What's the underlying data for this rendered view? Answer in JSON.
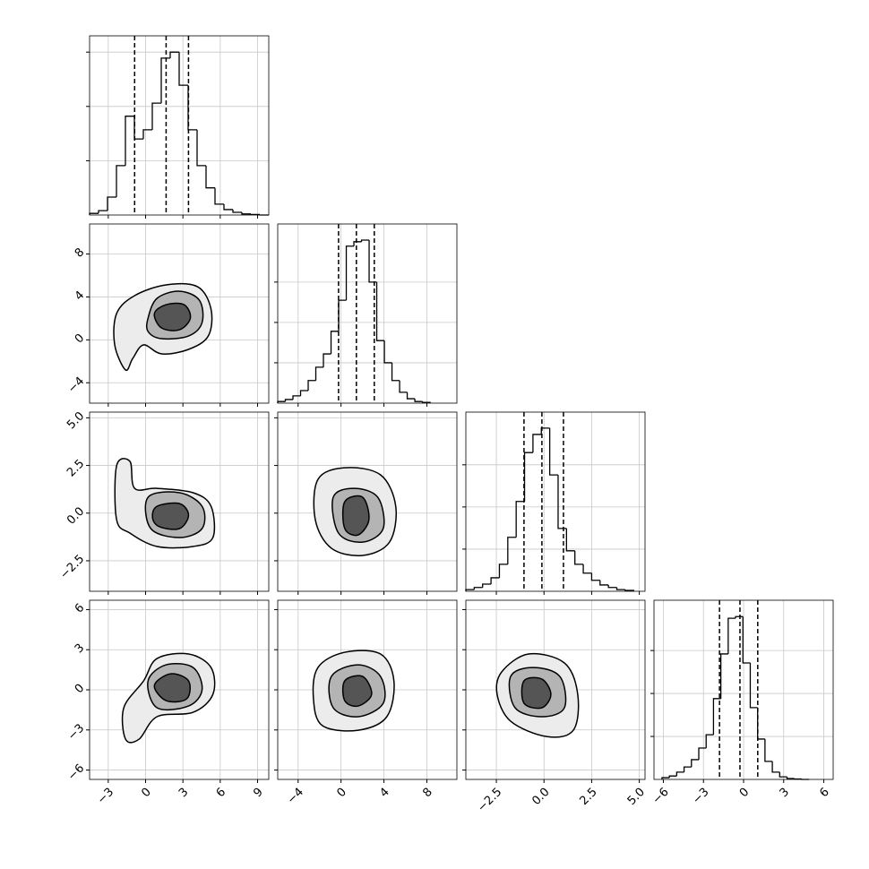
{
  "chart_data": [
    {
      "type": "histogram",
      "color": "#000000",
      "grid": true,
      "bins": [
        -4.5,
        -3.78,
        -3.06,
        -2.34,
        -1.62,
        -0.9,
        -0.18,
        0.54,
        1.26,
        1.98,
        2.7,
        3.42,
        4.14,
        4.86,
        5.58,
        6.3,
        7.02,
        7.74,
        8.46,
        9.18,
        9.9
      ],
      "values": [
        3,
        8,
        33,
        91,
        182,
        140,
        157,
        206,
        289,
        300,
        239,
        157,
        91,
        50,
        20,
        10,
        5,
        2,
        1,
        0
      ],
      "quantiles": [
        -0.88,
        1.65,
        3.45
      ],
      "xlim": [
        -4.5,
        9.9
      ],
      "xticks": [
        {
          "value": -3,
          "label": "−3"
        },
        0,
        3,
        6,
        9
      ],
      "ylim": [
        0,
        330
      ],
      "yticks": [
        100,
        200,
        300
      ]
    },
    {
      "type": "contour",
      "grid": true,
      "xlim": [
        -4.5,
        9.9
      ],
      "xticks": [
        {
          "value": -3,
          "label": "−3"
        },
        0,
        3,
        6,
        9
      ],
      "ylim": [
        -5.9,
        10.8
      ],
      "yticks": [
        {
          "value": -4,
          "label": "−4"
        },
        0,
        4,
        8
      ],
      "contours": [
        {
          "fill": "#ececec",
          "x": [
            -1.61,
            -2.48,
            -2.33,
            -0.88,
            1.65,
            4.18,
            5.26,
            5.04,
            3.45,
            1.28,
            -0.16,
            -1.03
          ],
          "y": [
            -2.81,
            -0.47,
            2.45,
            4.12,
            5.12,
            4.95,
            2.86,
            0.36,
            -0.89,
            -1.31,
            -0.47,
            -1.73
          ]
        },
        {
          "fill": "#b4b4b4",
          "x": [
            0.2,
            0.92,
            2.73,
            4.32,
            4.54,
            3.45,
            1.28,
            0.2
          ],
          "y": [
            2.03,
            3.87,
            4.53,
            3.7,
            1.61,
            0.36,
            0.11,
            0.78
          ]
        },
        {
          "fill": "#555555",
          "x": [
            0.71,
            1.65,
            3.09,
            3.6,
            2.73,
            1.28
          ],
          "y": [
            2.45,
            3.28,
            3.28,
            2.03,
            0.94,
            1.11
          ]
        }
      ]
    },
    {
      "type": "histogram",
      "color": "#000000",
      "grid": true,
      "bins": [
        -5.9,
        -5.19,
        -4.48,
        -3.77,
        -3.06,
        -2.35,
        -1.64,
        -0.93,
        -0.22,
        0.49,
        1.2,
        1.91,
        2.62,
        3.33,
        4.04,
        4.75,
        5.46,
        6.17,
        6.88,
        7.59,
        8.3
      ],
      "values": [
        4,
        9,
        18,
        31,
        56,
        89,
        122,
        178,
        255,
        389,
        400,
        404,
        300,
        155,
        100,
        56,
        27,
        11,
        4,
        2
      ],
      "quantiles": [
        -0.23,
        1.43,
        3.1
      ],
      "xlim": [
        -5.9,
        10.8
      ],
      "xticks": [
        {
          "value": -4,
          "label": "−4"
        },
        0,
        4,
        8
      ],
      "ylim": [
        0,
        444
      ],
      "yticks": [
        100,
        200,
        300
      ]
    },
    {
      "type": "contour",
      "grid": true,
      "xlim": [
        -4.5,
        9.9
      ],
      "xticks": [
        {
          "value": -3,
          "label": "−3"
        },
        0,
        3,
        6,
        9
      ],
      "ylim": [
        -4.1,
        5.3
      ],
      "yticks": [
        {
          "value": -2.5,
          "label": "−2.5"
        },
        {
          "value": 0,
          "label": "0.0"
        },
        2.5,
        {
          "value": 5,
          "label": "5.0"
        }
      ],
      "contours": [
        {
          "fill": "#ececec",
          "x": [
            -2.33,
            -1.25,
            -0.88,
            0.92,
            3.82,
            5.26,
            5.41,
            3.82,
            0.92,
            -1.25,
            -2.33
          ],
          "y": [
            2.48,
            2.71,
            1.3,
            1.3,
            1.07,
            0.36,
            -1.28,
            -1.75,
            -1.75,
            -1.05,
            -0.34
          ]
        },
        {
          "fill": "#b4b4b4",
          "x": [
            0.2,
            2.73,
            4.54,
            4.54,
            2.73,
            0.42
          ],
          "y": [
            0.83,
            1.07,
            0.36,
            -0.81,
            -1.28,
            -0.81
          ]
        },
        {
          "fill": "#555555",
          "x": [
            0.92,
            2.73,
            3.45,
            2.73,
            1.14,
            0.56
          ],
          "y": [
            0.36,
            0.5,
            -0.11,
            -0.81,
            -0.72,
            -0.25
          ]
        }
      ]
    },
    {
      "type": "contour",
      "grid": true,
      "xlim": [
        -5.9,
        10.8
      ],
      "xticks": [
        {
          "value": -4,
          "label": "−4"
        },
        0,
        4,
        8
      ],
      "ylim": [
        -4.1,
        5.3
      ],
      "yticks": [
        {
          "value": -2.5,
          "label": "−2.5"
        },
        {
          "value": 0,
          "label": "0.0"
        },
        2.5,
        {
          "value": 5,
          "label": "5.0"
        }
      ],
      "contours": [
        {
          "fill": "#ececec",
          "x": [
            -2.15,
            0.35,
            3.68,
            5.1,
            4.52,
            2.02,
            -0.9,
            -2.4
          ],
          "y": [
            1.77,
            2.38,
            2.01,
            0.36,
            -1.52,
            -2.22,
            -1.84,
            -0.34
          ]
        },
        {
          "fill": "#b4b4b4",
          "x": [
            -0.73,
            1.18,
            3.43,
            3.93,
            2.02,
            -0.23
          ],
          "y": [
            0.83,
            1.3,
            0.83,
            -0.81,
            -1.52,
            -1.05
          ]
        },
        {
          "fill": "#555555",
          "x": [
            0.35,
            2.02,
            2.6,
            1.6,
            0.35
          ],
          "y": [
            0.6,
            0.83,
            -0.34,
            -1.14,
            -0.81
          ]
        }
      ]
    },
    {
      "type": "histogram",
      "color": "#000000",
      "grid": true,
      "bins": [
        -4.1,
        -3.66,
        -3.22,
        -2.78,
        -2.34,
        -1.9,
        -1.46,
        -1.02,
        -0.58,
        -0.14,
        0.3,
        0.74,
        1.18,
        1.62,
        2.06,
        2.5,
        2.94,
        3.38,
        3.82,
        4.26,
        4.7
      ],
      "values": [
        4,
        9,
        17,
        32,
        64,
        128,
        213,
        329,
        372,
        387,
        276,
        149,
        96,
        64,
        43,
        26,
        15,
        9,
        4,
        2
      ],
      "quantiles": [
        -1.05,
        -0.11,
        1.02
      ],
      "xlim": [
        -4.1,
        5.3
      ],
      "xticks": [
        {
          "value": -2.5,
          "label": "−2.5"
        },
        {
          "value": 0,
          "label": "0.0"
        },
        2.5,
        {
          "value": 5,
          "label": "5.0"
        }
      ],
      "ylim": [
        0,
        425
      ],
      "yticks": [
        100,
        200,
        300
      ]
    },
    {
      "type": "contour",
      "grid": true,
      "xlim": [
        -4.5,
        9.9
      ],
      "xticks": [
        {
          "value": -3,
          "label": "−3"
        },
        0,
        3,
        6,
        9
      ],
      "ylim": [
        -6.7,
        6.7
      ],
      "yticks": [
        {
          "value": -6,
          "label": "−6"
        },
        {
          "value": -3,
          "label": "−3"
        },
        0,
        3,
        6
      ],
      "contours": [
        {
          "fill": "#ececec",
          "x": [
            -1.61,
            -1.75,
            -0.16,
            0.92,
            3.45,
            5.26,
            5.41,
            3.82,
            0.92,
            -0.52
          ],
          "y": [
            -3.69,
            -1.34,
            0.67,
            2.34,
            2.68,
            1.67,
            -0.34,
            -1.68,
            -2.01,
            -3.69
          ]
        },
        {
          "fill": "#b4b4b4",
          "x": [
            0.2,
            1.65,
            3.82,
            4.54,
            3.45,
            0.92
          ],
          "y": [
            0.67,
            1.87,
            1.67,
            0,
            -1.21,
            -1.34
          ]
        },
        {
          "fill": "#555555",
          "x": [
            0.71,
            2.01,
            3.45,
            3.31,
            1.65
          ],
          "y": [
            0.33,
            1.2,
            0.67,
            -0.67,
            -0.81
          ]
        }
      ]
    },
    {
      "type": "contour",
      "grid": true,
      "xlim": [
        -5.9,
        10.8
      ],
      "xticks": [
        {
          "value": -4,
          "label": "−4"
        },
        0,
        4,
        8
      ],
      "ylim": [
        -6.7,
        6.7
      ],
      "yticks": [
        {
          "value": -6,
          "label": "−6"
        },
        {
          "value": -3,
          "label": "−3"
        },
        0,
        3,
        6
      ],
      "contours": [
        {
          "fill": "#ececec",
          "x": [
            -2.15,
            0.35,
            3.68,
            4.93,
            4.27,
            1.6,
            -1.73,
            -2.57
          ],
          "y": [
            1.67,
            2.81,
            2.68,
            0.67,
            -2.01,
            -3.02,
            -2.68,
            -0.67
          ]
        },
        {
          "fill": "#b4b4b4",
          "x": [
            -0.9,
            1.6,
            3.68,
            3.93,
            1.6,
            -0.73
          ],
          "y": [
            1.0,
            1.87,
            1.0,
            -1.01,
            -2.01,
            -1.34
          ]
        },
        {
          "fill": "#555555",
          "x": [
            0.35,
            2.02,
            2.85,
            1.6,
            0.35
          ],
          "y": [
            0.67,
            1.0,
            -0.34,
            -1.21,
            -0.81
          ]
        }
      ]
    },
    {
      "type": "contour",
      "grid": true,
      "xlim": [
        -4.1,
        5.3
      ],
      "xticks": [
        {
          "value": -2.5,
          "label": "−2.5"
        },
        {
          "value": 0,
          "label": "0.0"
        },
        2.5,
        {
          "value": 5,
          "label": "5.0"
        }
      ],
      "ylim": [
        -6.7,
        6.7
      ],
      "yticks": [
        {
          "value": -6,
          "label": "−6"
        },
        {
          "value": -3,
          "label": "−3"
        },
        0,
        3,
        6
      ],
      "contours": [
        {
          "fill": "#ececec",
          "x": [
            -2.22,
            -0.81,
            1.07,
            1.77,
            1.54,
            0.13,
            -1.75,
            -2.46
          ],
          "y": [
            1.34,
            2.68,
            2.01,
            -0.34,
            -3.02,
            -3.49,
            -2.35,
            -0.34
          ]
        },
        {
          "fill": "#b4b4b4",
          "x": [
            -1.75,
            -0.58,
            0.83,
            1.07,
            -0.11,
            -1.52
          ],
          "y": [
            1.0,
            1.67,
            1.0,
            -1.34,
            -2.01,
            -1.34
          ]
        },
        {
          "fill": "#555555",
          "x": [
            -1.05,
            -0.11,
            0.36,
            -0.11,
            -1.05
          ],
          "y": [
            0.67,
            0.8,
            -0.34,
            -1.34,
            -1.0
          ]
        }
      ]
    },
    {
      "type": "histogram",
      "color": "#000000",
      "grid": true,
      "bins": [
        -6.1,
        -5.55,
        -5.0,
        -4.45,
        -3.9,
        -3.35,
        -2.8,
        -2.25,
        -1.7,
        -1.15,
        -0.6,
        -0.05,
        0.5,
        1.05,
        1.6,
        2.15,
        2.7,
        3.25,
        3.8,
        4.35,
        4.9
      ],
      "values": [
        4,
        8,
        17,
        29,
        46,
        73,
        104,
        188,
        292,
        375,
        379,
        271,
        167,
        94,
        42,
        17,
        6,
        2,
        1,
        0
      ],
      "quantiles": [
        -1.8,
        -0.27,
        1.06
      ],
      "xlim": [
        -6.7,
        6.7
      ],
      "xticks": [
        {
          "value": -6,
          "label": "−6"
        },
        {
          "value": -3,
          "label": "−3"
        },
        0,
        3,
        6
      ],
      "ylim": [
        0,
        417
      ],
      "yticks": [
        100,
        200,
        300
      ]
    }
  ]
}
